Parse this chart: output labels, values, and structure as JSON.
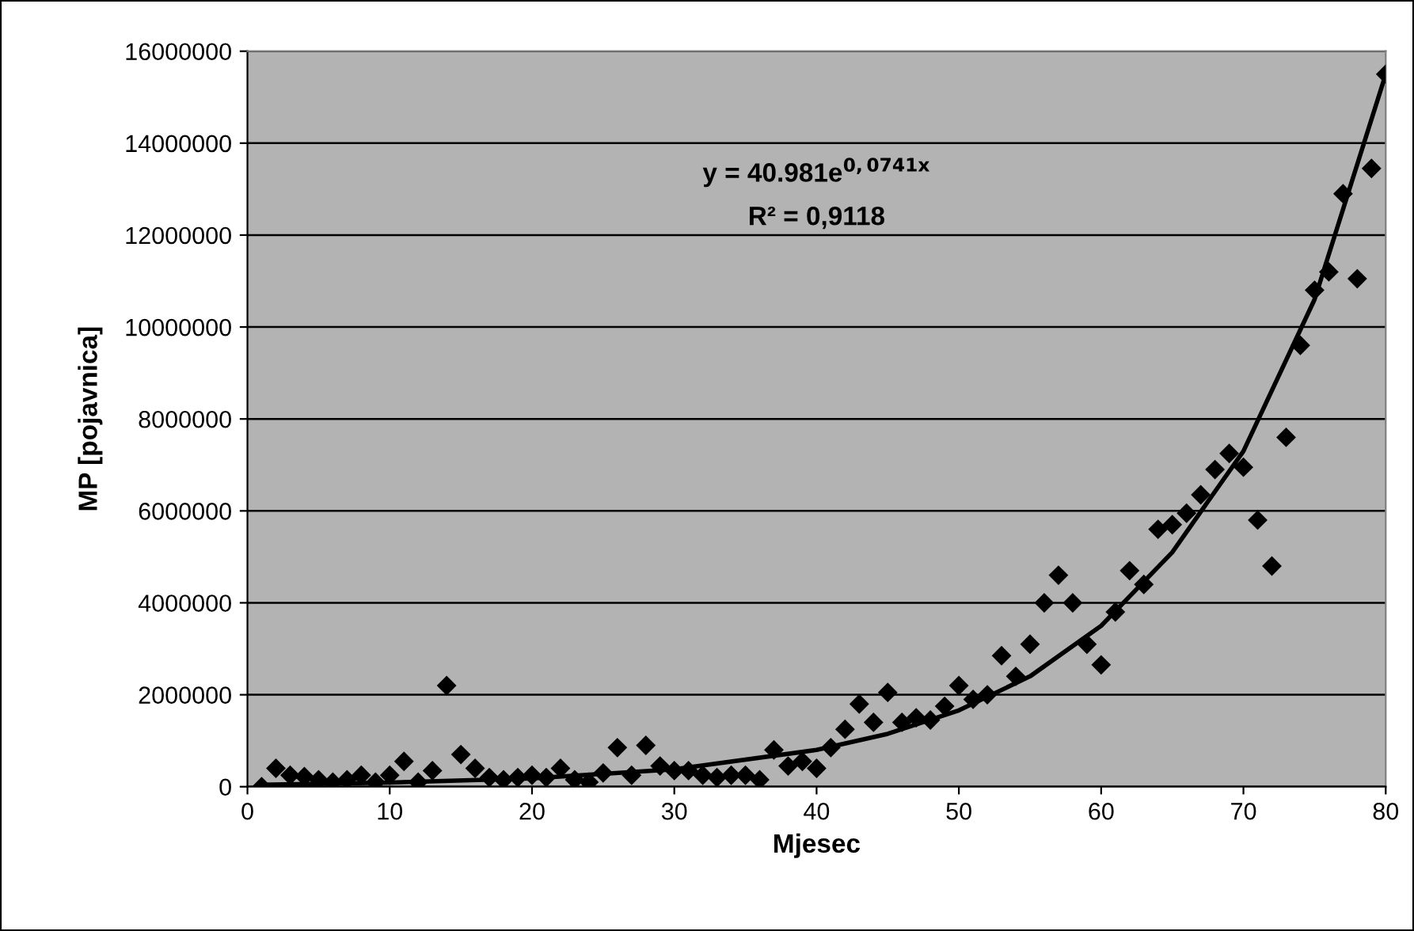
{
  "chart_data": {
    "type": "scatter",
    "xlabel": "Mjesec",
    "ylabel": "MP [pojavnica]",
    "xlim": [
      0,
      80
    ],
    "xticks": [
      0,
      10,
      20,
      30,
      40,
      50,
      60,
      70,
      80
    ],
    "ylim": [
      0,
      16000000
    ],
    "yticks": [
      0,
      2000000,
      4000000,
      6000000,
      8000000,
      10000000,
      12000000,
      14000000,
      16000000
    ],
    "grid": "y",
    "marker": "diamond",
    "annotations": [
      "y = 40.981e$^{0,0741x}$",
      "R² = 0,9118"
    ],
    "series": [
      {
        "color": "#000000",
        "x": [
          1,
          2,
          3,
          4,
          5,
          6,
          7,
          8,
          9,
          10,
          11,
          12,
          13,
          14,
          15,
          16,
          17,
          18,
          19,
          20,
          21,
          22,
          23,
          24,
          25,
          26,
          27,
          28,
          29,
          30,
          31,
          32,
          33,
          34,
          35,
          36,
          37,
          38,
          39,
          40,
          41,
          42,
          43,
          44,
          45,
          46,
          47,
          48,
          49,
          50,
          51,
          52,
          53,
          54,
          55,
          56,
          57,
          58,
          59,
          60,
          61,
          62,
          63,
          64,
          65,
          66,
          67,
          68,
          69,
          70,
          71,
          72,
          73,
          74,
          75,
          76,
          77,
          78,
          79,
          80
        ],
        "values": [
          0,
          400000,
          250000,
          220000,
          150000,
          100000,
          150000,
          250000,
          100000,
          250000,
          550000,
          100000,
          350000,
          2200000,
          700000,
          400000,
          200000,
          150000,
          200000,
          250000,
          200000,
          400000,
          150000,
          100000,
          300000,
          850000,
          250000,
          900000,
          450000,
          350000,
          350000,
          250000,
          200000,
          250000,
          250000,
          150000,
          800000,
          450000,
          550000,
          400000,
          850000,
          1250000,
          1800000,
          1400000,
          2050000,
          1400000,
          1500000,
          1450000,
          1750000,
          2200000,
          1900000,
          2000000,
          2850000,
          2400000,
          3100000,
          4000000,
          4600000,
          4000000,
          3100000,
          2650000,
          3800000,
          4700000,
          4400000,
          5600000,
          5700000,
          5950000,
          6350000,
          6900000,
          7250000,
          6950000,
          5800000,
          4800000,
          7600000,
          9600000,
          10800000,
          11200000,
          12900000,
          11050000,
          13450000,
          15500000
        ]
      },
      {
        "type": "line",
        "color": "#000000",
        "marker": "none",
        "x": [
          1,
          10,
          20,
          30,
          40,
          45,
          50,
          55,
          60,
          65,
          70,
          75,
          80
        ],
        "values": [
          40000,
          90000,
          180000,
          380000,
          800000,
          1150000,
          1660000,
          2400000,
          3500000,
          5100000,
          7300000,
          10600000,
          15500000
        ]
      }
    ]
  }
}
